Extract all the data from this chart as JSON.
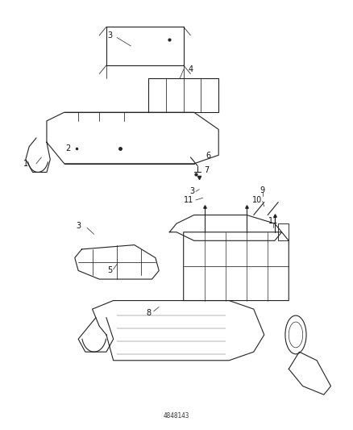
{
  "background_color": "#ffffff",
  "fig_width": 4.38,
  "fig_height": 5.33,
  "dpi": 100,
  "line_color": "#222222",
  "label_color": "#111111",
  "font_size": 7,
  "lw": 0.8
}
